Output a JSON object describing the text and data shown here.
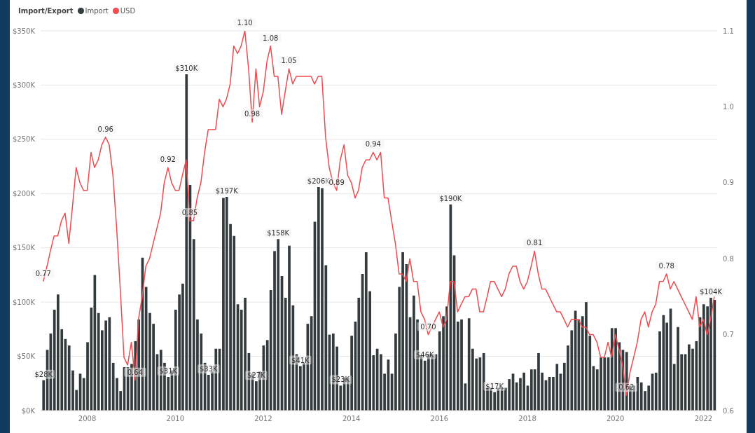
{
  "chart_data": {
    "type": "bar",
    "legend_title": "Import/Export",
    "legend": "top left",
    "grid": "y",
    "x": [
      "2007-01",
      "2007-02",
      "2007-03",
      "2007-04",
      "2007-05",
      "2007-06",
      "2007-07",
      "2007-08",
      "2007-09",
      "2007-10",
      "2007-11",
      "2007-12",
      "2008-01",
      "2008-02",
      "2008-03",
      "2008-04",
      "2008-05",
      "2008-06",
      "2008-07",
      "2008-08",
      "2008-09",
      "2008-10",
      "2008-11",
      "2008-12",
      "2009-01",
      "2009-02",
      "2009-03",
      "2009-04",
      "2009-05",
      "2009-06",
      "2009-07",
      "2009-08",
      "2009-09",
      "2009-10",
      "2009-11",
      "2009-12",
      "2010-01",
      "2010-02",
      "2010-03",
      "2010-04",
      "2010-05",
      "2010-06",
      "2010-07",
      "2010-08",
      "2010-09",
      "2010-10",
      "2010-11",
      "2010-12",
      "2011-01",
      "2011-02",
      "2011-03",
      "2011-04",
      "2011-05",
      "2011-06",
      "2011-07",
      "2011-08",
      "2011-09",
      "2011-10",
      "2011-11",
      "2011-12",
      "2012-01",
      "2012-02",
      "2012-03",
      "2012-04",
      "2012-05",
      "2012-06",
      "2012-07",
      "2012-08",
      "2012-09",
      "2012-10",
      "2012-11",
      "2012-12",
      "2013-01",
      "2013-02",
      "2013-03",
      "2013-04",
      "2013-05",
      "2013-06",
      "2013-07",
      "2013-08",
      "2013-09",
      "2013-10",
      "2013-11",
      "2013-12",
      "2014-01",
      "2014-02",
      "2014-03",
      "2014-04",
      "2014-05",
      "2014-06",
      "2014-07",
      "2014-08",
      "2014-09",
      "2014-10",
      "2014-11",
      "2014-12",
      "2015-01",
      "2015-02",
      "2015-03",
      "2015-04",
      "2015-05",
      "2015-06",
      "2015-07",
      "2015-08",
      "2015-09",
      "2015-10",
      "2015-11",
      "2015-12",
      "2016-01",
      "2016-02",
      "2016-03",
      "2016-04",
      "2016-05",
      "2016-06",
      "2016-07",
      "2016-08",
      "2016-09",
      "2016-10",
      "2016-11",
      "2016-12",
      "2017-01",
      "2017-02",
      "2017-03",
      "2017-04",
      "2017-05",
      "2017-06",
      "2017-07",
      "2017-08",
      "2017-09",
      "2017-10",
      "2017-11",
      "2017-12",
      "2018-01",
      "2018-02",
      "2018-03",
      "2018-04",
      "2018-05",
      "2018-06",
      "2018-07",
      "2018-08",
      "2018-09",
      "2018-10",
      "2018-11",
      "2018-12",
      "2019-01",
      "2019-02",
      "2019-03",
      "2019-04",
      "2019-05",
      "2019-06",
      "2019-07",
      "2019-08",
      "2019-09",
      "2019-10",
      "2019-11",
      "2019-12",
      "2020-01",
      "2020-02",
      "2020-03",
      "2020-04",
      "2020-05",
      "2020-06",
      "2020-07",
      "2020-08",
      "2020-09",
      "2020-10",
      "2020-11",
      "2020-12",
      "2021-01",
      "2021-02",
      "2021-03",
      "2021-04",
      "2021-05",
      "2021-06",
      "2021-07",
      "2021-08",
      "2021-09",
      "2021-10",
      "2021-11",
      "2021-12",
      "2022-01",
      "2022-02",
      "2022-03",
      "2022-04"
    ],
    "xlim": [
      "2006-12-10",
      "2022-04-25"
    ],
    "xticks": [
      "2008",
      "2010",
      "2012",
      "2014",
      "2016",
      "2018",
      "2020",
      "2022"
    ],
    "ylim": [
      0,
      350
    ],
    "yticks": [
      {
        "value": 0,
        "label": "$0K"
      },
      {
        "value": 50,
        "label": "$50K"
      },
      {
        "value": 100,
        "label": "$100K"
      },
      {
        "value": 150,
        "label": "$150K"
      },
      {
        "value": 200,
        "label": "$200K"
      },
      {
        "value": 250,
        "label": "$250K"
      },
      {
        "value": 300,
        "label": "$300K"
      },
      {
        "value": 350,
        "label": "$350K"
      }
    ],
    "y2lim": [
      0.6,
      1.1
    ],
    "y2ticks": [
      0.6,
      0.7,
      0.8,
      0.9,
      {
        "value": 1.0,
        "label": "1.0"
      },
      1.1
    ],
    "series": [
      {
        "name": "Import",
        "color": "#343b3e",
        "values": [
          28,
          56,
          71,
          93,
          107,
          75,
          66,
          60,
          37,
          19,
          34,
          30,
          63,
          95,
          125,
          90,
          74,
          83,
          86,
          44,
          30,
          18,
          40,
          40,
          43,
          64,
          84,
          141,
          114,
          90,
          80,
          52,
          56,
          44,
          31,
          37,
          93,
          107,
          117,
          310,
          208,
          158,
          84,
          71,
          44,
          33,
          36,
          57,
          57,
          196,
          197,
          172,
          161,
          98,
          93,
          104,
          53,
          34,
          27,
          36,
          60,
          65,
          111,
          147,
          158,
          124,
          104,
          152,
          97,
          52,
          41,
          44,
          80,
          87,
          174,
          206,
          205,
          134,
          70,
          71,
          59,
          23,
          30,
          30,
          69,
          82,
          104,
          126,
          146,
          110,
          51,
          57,
          52,
          34,
          47,
          34,
          71,
          114,
          146,
          135,
          86,
          106,
          84,
          51,
          46,
          52,
          52,
          52,
          73,
          87,
          96,
          190,
          143,
          82,
          84,
          25,
          85,
          57,
          48,
          49,
          53,
          21,
          21,
          17,
          21,
          21,
          21,
          29,
          34,
          26,
          30,
          35,
          23,
          38,
          38,
          53,
          35,
          28,
          31,
          31,
          43,
          34,
          44,
          60,
          74,
          92,
          84,
          87,
          100,
          69,
          41,
          38,
          49,
          49,
          49,
          76,
          76,
          63,
          56,
          54,
          23,
          23,
          31,
          26,
          18,
          23,
          34,
          35,
          73,
          88,
          81,
          94,
          43,
          77,
          52,
          52,
          61,
          57,
          64,
          86,
          98,
          96,
          104,
          102
        ],
        "value_labels": [
          "$28K",
          null,
          null,
          null,
          null,
          null,
          null,
          null,
          null,
          null,
          null,
          null,
          null,
          null,
          null,
          null,
          null,
          null,
          null,
          null,
          null,
          null,
          null,
          null,
          null,
          null,
          null,
          null,
          null,
          null,
          null,
          null,
          null,
          null,
          "$31K",
          null,
          null,
          null,
          null,
          "$310K",
          null,
          null,
          null,
          null,
          null,
          "$33K",
          null,
          null,
          null,
          null,
          "$197K",
          null,
          null,
          null,
          null,
          null,
          null,
          null,
          "$27K",
          null,
          null,
          null,
          null,
          null,
          "$158K",
          null,
          null,
          null,
          null,
          null,
          "$41K",
          null,
          null,
          null,
          null,
          "$206K",
          null,
          null,
          null,
          null,
          null,
          "$23K",
          null,
          null,
          null,
          null,
          null,
          null,
          null,
          null,
          null,
          null,
          null,
          null,
          null,
          null,
          null,
          null,
          null,
          null,
          null,
          null,
          null,
          null,
          "$46K",
          null,
          null,
          null,
          null,
          null,
          null,
          "$190K",
          null,
          null,
          null,
          null,
          null,
          null,
          null,
          null,
          null,
          null,
          null,
          "$17K",
          null,
          null,
          null,
          null,
          null,
          null,
          null,
          null,
          null,
          null,
          null,
          null,
          null,
          null,
          null,
          null,
          null,
          null,
          null,
          null,
          null,
          null,
          null,
          null,
          null,
          null,
          null,
          null,
          null,
          null,
          null,
          null,
          null,
          null,
          null,
          null,
          null,
          null,
          null,
          null,
          null,
          null,
          null,
          null,
          null,
          null,
          null,
          null,
          null,
          null,
          null,
          null,
          null,
          null,
          null,
          null,
          null,
          null,
          "$104K",
          null
        ]
      },
      {
        "name": "USD",
        "type": "line",
        "axis": "y2",
        "color": "#ef4b50",
        "values": [
          0.77,
          0.79,
          0.81,
          0.83,
          0.83,
          0.85,
          0.86,
          0.82,
          0.87,
          0.92,
          0.9,
          0.89,
          0.89,
          0.94,
          0.92,
          0.93,
          0.95,
          0.96,
          0.95,
          0.91,
          0.84,
          0.76,
          0.67,
          0.66,
          0.69,
          0.64,
          0.72,
          0.75,
          0.79,
          0.8,
          0.82,
          0.84,
          0.86,
          0.9,
          0.92,
          0.9,
          0.89,
          0.89,
          0.91,
          0.93,
          0.85,
          0.85,
          0.88,
          0.9,
          0.94,
          0.97,
          0.97,
          0.97,
          1.01,
          1.0,
          1.01,
          1.03,
          1.08,
          1.07,
          1.08,
          1.1,
          1.05,
          0.98,
          1.05,
          1.0,
          1.02,
          1.06,
          1.08,
          1.04,
          1.04,
          0.99,
          1.02,
          1.05,
          1.03,
          1.04,
          1.04,
          1.04,
          1.04,
          1.04,
          1.03,
          1.04,
          1.04,
          0.96,
          0.92,
          0.9,
          0.89,
          0.93,
          0.95,
          0.91,
          0.9,
          0.88,
          0.89,
          0.92,
          0.93,
          0.93,
          0.94,
          0.93,
          0.94,
          0.88,
          0.88,
          0.85,
          0.82,
          0.78,
          0.78,
          0.77,
          0.8,
          0.77,
          0.77,
          0.73,
          0.72,
          0.7,
          0.71,
          0.72,
          0.73,
          0.71,
          0.72,
          0.77,
          0.77,
          0.73,
          0.74,
          0.75,
          0.75,
          0.76,
          0.76,
          0.73,
          0.73,
          0.75,
          0.77,
          0.77,
          0.76,
          0.75,
          0.76,
          0.78,
          0.79,
          0.79,
          0.77,
          0.76,
          0.77,
          0.79,
          0.81,
          0.78,
          0.76,
          0.76,
          0.75,
          0.74,
          0.73,
          0.73,
          0.72,
          0.71,
          0.72,
          0.72,
          0.72,
          0.71,
          0.71,
          0.7,
          0.7,
          0.69,
          0.67,
          0.67,
          0.69,
          0.67,
          0.7,
          0.68,
          0.66,
          0.62,
          0.65,
          0.67,
          0.69,
          0.72,
          0.73,
          0.71,
          0.73,
          0.74,
          0.77,
          0.77,
          0.78,
          0.76,
          0.77,
          0.76,
          0.75,
          0.74,
          0.73,
          0.72,
          0.75,
          0.71,
          0.72,
          0.7,
          0.72,
          0.75
        ],
        "value_labels": [
          "0.77",
          null,
          null,
          null,
          null,
          null,
          null,
          null,
          null,
          null,
          null,
          null,
          null,
          null,
          null,
          null,
          null,
          "0.96",
          null,
          null,
          null,
          null,
          null,
          null,
          null,
          "0.64",
          null,
          null,
          null,
          null,
          null,
          null,
          null,
          null,
          "0.92",
          null,
          null,
          null,
          null,
          null,
          "0.85",
          null,
          null,
          null,
          null,
          null,
          null,
          null,
          null,
          null,
          null,
          null,
          null,
          null,
          null,
          "1.10",
          null,
          "0.98",
          null,
          null,
          null,
          null,
          "1.08",
          null,
          null,
          null,
          null,
          "1.05",
          null,
          null,
          null,
          null,
          null,
          null,
          null,
          null,
          null,
          null,
          null,
          null,
          "0.89",
          null,
          null,
          null,
          null,
          null,
          null,
          null,
          null,
          null,
          "0.94",
          null,
          null,
          null,
          null,
          null,
          null,
          null,
          null,
          null,
          null,
          null,
          null,
          null,
          null,
          "0.70",
          null,
          null,
          null,
          null,
          null,
          null,
          null,
          null,
          null,
          null,
          null,
          null,
          null,
          null,
          null,
          null,
          null,
          null,
          null,
          null,
          null,
          null,
          null,
          null,
          null,
          null,
          null,
          null,
          "0.81",
          null,
          null,
          null,
          null,
          null,
          null,
          null,
          null,
          null,
          null,
          null,
          null,
          null,
          null,
          null,
          null,
          null,
          null,
          null,
          null,
          null,
          null,
          null,
          null,
          "0.62",
          null,
          null,
          null,
          null,
          null,
          null,
          null,
          null,
          null,
          null,
          "0.78",
          null,
          null,
          null,
          null,
          null,
          null,
          null,
          null,
          null,
          null,
          null,
          null,
          null
        ]
      }
    ]
  }
}
